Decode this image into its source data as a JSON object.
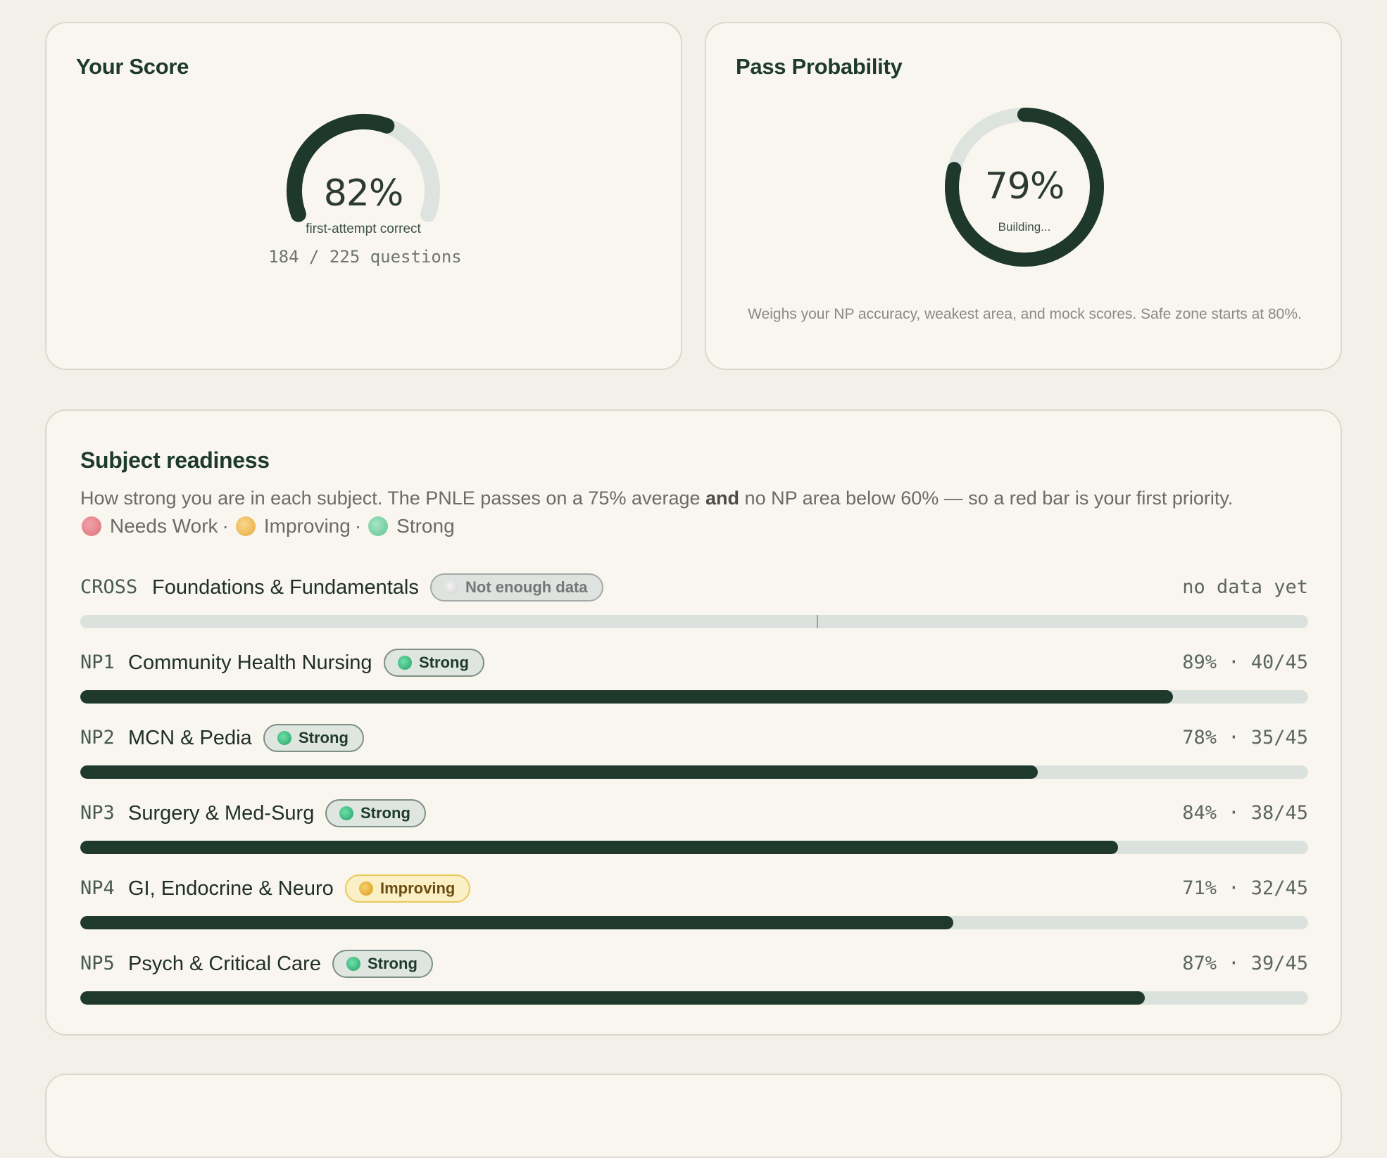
{
  "score": {
    "title": "Your Score",
    "percent_label": "82%",
    "percent": 82,
    "subtitle": "first-attempt correct",
    "questions": "184 / 225 questions"
  },
  "pass": {
    "title": "Pass Probability",
    "percent_label": "79%",
    "percent": 79,
    "status": "Building...",
    "note": "Weighs your NP accuracy, weakest area, and mock scores. Safe zone starts at 80%."
  },
  "readiness": {
    "title": "Subject readiness",
    "desc_before": "How strong you are in each subject. The PNLE passes on a 75% average ",
    "desc_bold": "and",
    "desc_after": " no NP area below 60% — so a red bar is your first priority.",
    "legend": [
      {
        "label": "Needs Work",
        "color": "#e58b93"
      },
      {
        "label": "Improving",
        "color": "#f2c36a"
      },
      {
        "label": "Strong",
        "color": "#7fd3a5"
      }
    ],
    "rows": [
      {
        "code": "CROSS",
        "name": "Foundations & Fundamentals",
        "badge": "Not enough data",
        "badge_type": "nodata",
        "stat": "no data yet",
        "progress": 0,
        "marker": 0.6
      },
      {
        "code": "NP1",
        "name": "Community Health Nursing",
        "badge": "Strong",
        "badge_type": "strong",
        "stat": "89% · 40/45",
        "progress": 0.89
      },
      {
        "code": "NP2",
        "name": "MCN & Pedia",
        "badge": "Strong",
        "badge_type": "strong",
        "stat": "78% · 35/45",
        "progress": 0.78
      },
      {
        "code": "NP3",
        "name": "Surgery & Med-Surg",
        "badge": "Strong",
        "badge_type": "strong",
        "stat": "84% · 38/45",
        "progress": 0.845
      },
      {
        "code": "NP4",
        "name": "GI, Endocrine & Neuro",
        "badge": "Improving",
        "badge_type": "improving",
        "stat": "71% · 32/45",
        "progress": 0.711
      },
      {
        "code": "NP5",
        "name": "Psych & Critical Care",
        "badge": "Strong",
        "badge_type": "strong",
        "stat": "87% · 39/45",
        "progress": 0.867
      }
    ]
  },
  "colors": {
    "accent": "#1f3a2d",
    "track": "#dbe2dd"
  }
}
